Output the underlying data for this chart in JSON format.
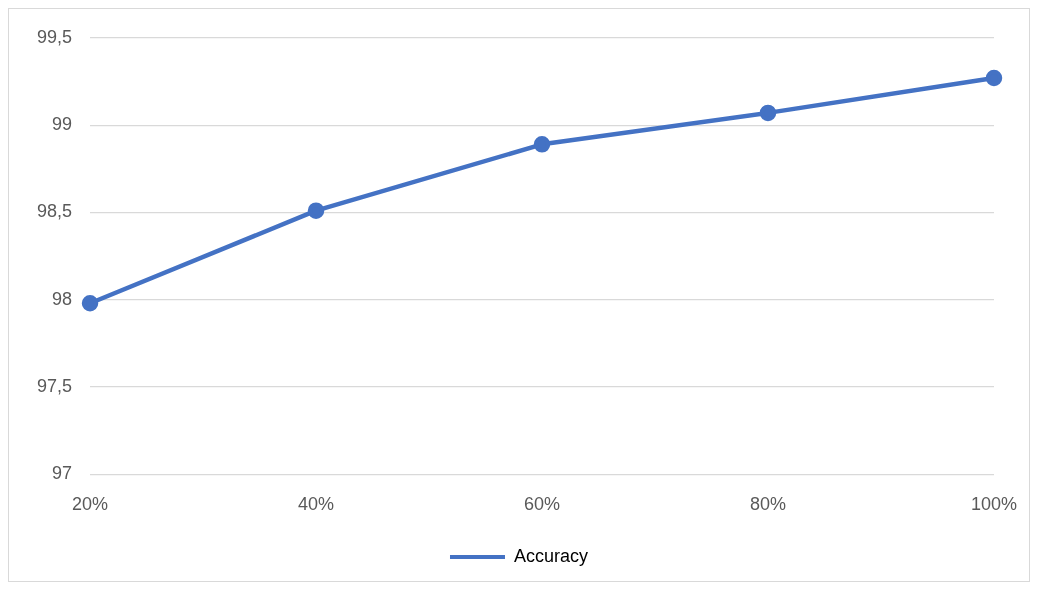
{
  "chart_data": {
    "type": "line",
    "categories": [
      "20%",
      "40%",
      "60%",
      "80%",
      "100%"
    ],
    "series": [
      {
        "name": "Accuracy",
        "color": "#4472c4",
        "values": [
          97.98,
          98.51,
          98.89,
          99.07,
          99.27
        ]
      }
    ],
    "ylim": [
      97,
      99.5
    ],
    "yticks": [
      {
        "value": 97,
        "label": "97"
      },
      {
        "value": 97.5,
        "label": "97,5"
      },
      {
        "value": 98,
        "label": "98"
      },
      {
        "value": 98.5,
        "label": "98,5"
      },
      {
        "value": 99,
        "label": "99"
      },
      {
        "value": 99.5,
        "label": "99,5"
      }
    ],
    "grid": "y",
    "legend": "bottom",
    "marker": "circle",
    "line_style": "solid"
  }
}
